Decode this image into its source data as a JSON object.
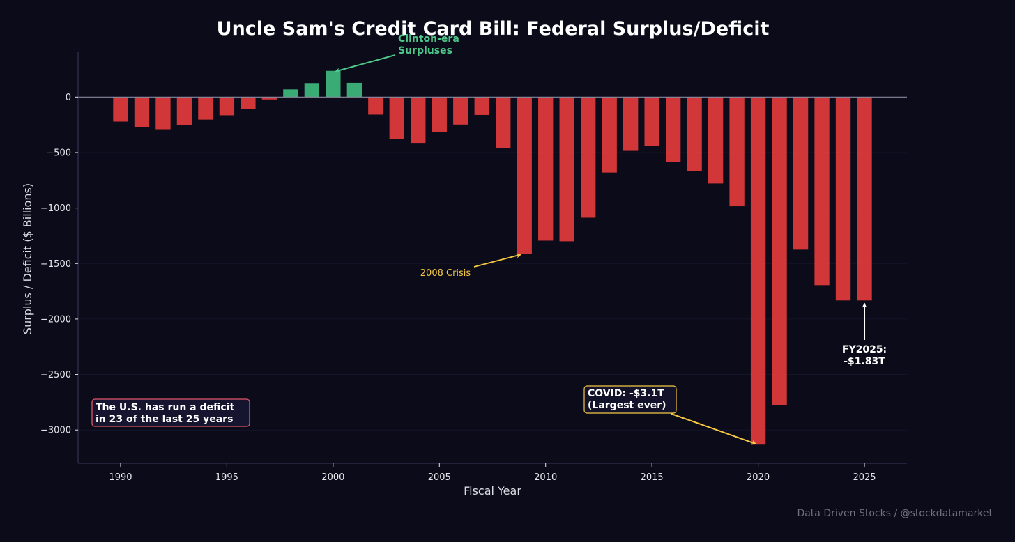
{
  "chart_data": {
    "type": "bar",
    "title": "Uncle Sam's Credit Card Bill: Federal Surplus/Deficit",
    "xlabel": "Fiscal Year",
    "ylabel": "Surplus / Deficit ($ Billions)",
    "x": [
      1990,
      1991,
      1992,
      1993,
      1994,
      1995,
      1996,
      1997,
      1998,
      1999,
      2000,
      2001,
      2002,
      2003,
      2004,
      2005,
      2006,
      2007,
      2008,
      2009,
      2010,
      2011,
      2012,
      2013,
      2014,
      2015,
      2016,
      2017,
      2018,
      2019,
      2020,
      2021,
      2022,
      2023,
      2024,
      2025
    ],
    "values": [
      -221,
      -269,
      -290,
      -255,
      -203,
      -164,
      -107,
      -22,
      69,
      126,
      236,
      128,
      -158,
      -378,
      -413,
      -318,
      -248,
      -161,
      -459,
      -1413,
      -1294,
      -1300,
      -1087,
      -680,
      -485,
      -442,
      -585,
      -665,
      -779,
      -984,
      -3132,
      -2775,
      -1375,
      -1695,
      -1833,
      -1833
    ],
    "xticks": [
      1990,
      1995,
      2000,
      2005,
      2010,
      2015,
      2020,
      2025
    ],
    "yticks": [
      0,
      -500,
      -1000,
      -1500,
      -2000,
      -2500,
      -3000
    ],
    "ytick_labels": [
      "0",
      "−500",
      "−1000",
      "−1500",
      "−2000",
      "−2500",
      "−3000"
    ],
    "xlim": [
      1988,
      2027
    ],
    "ylim": [
      -3300,
      410
    ],
    "grid": "horizontal",
    "colors": {
      "surplus": "#3db47a",
      "deficit": "#dc3a3a",
      "background": "#0b0b19",
      "axis": "#3a3a5a",
      "zero_line": "#8a8aa0",
      "gridline": "#15152a",
      "tick_text": "#e6e6ec",
      "label_text": "#dcdce4",
      "annotation_gold": "#f5c842",
      "annotation_green": "#4ec88a",
      "annotation_white": "#ffffff",
      "callout_border_red": "#e0566a",
      "watermark": "#70707e"
    },
    "annotations": [
      {
        "id": "clinton",
        "lines": [
          "Clinton-era",
          "Surpluses"
        ],
        "target_x": 2000,
        "target_y": 236,
        "color": "annotation_green"
      },
      {
        "id": "crisis",
        "lines": [
          "2008 Crisis"
        ],
        "target_x": 2009,
        "target_y": -1413,
        "color": "annotation_gold"
      },
      {
        "id": "covid",
        "lines": [
          "COVID: -$3.1T",
          "(Largest ever)"
        ],
        "target_x": 2020,
        "target_y": -3132,
        "color": "annotation_gold",
        "boxed": true
      },
      {
        "id": "fy2025",
        "lines": [
          "FY2025:",
          "-$1.83T"
        ],
        "target_x": 2025,
        "target_y": -1833,
        "color": "annotation_white"
      }
    ],
    "callout": {
      "lines": [
        "The U.S. has run a deficit",
        "in 23 of the last 25 years"
      ]
    }
  },
  "watermark": "Data Driven Stocks / @stockdatamarket"
}
